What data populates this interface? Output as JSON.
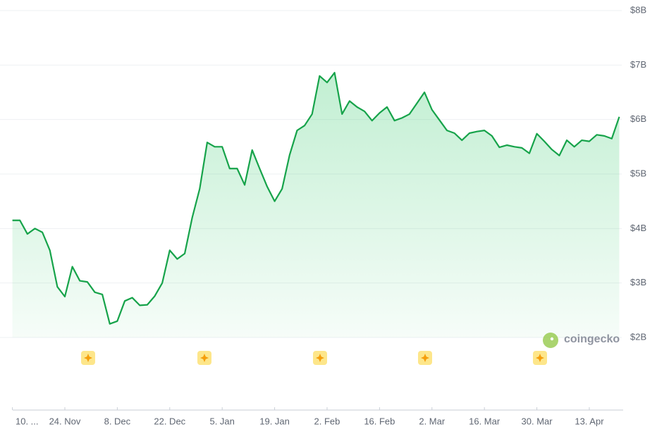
{
  "chart_data": {
    "type": "area",
    "color": "#16a34a",
    "grid": true,
    "watermark": "coingecko",
    "ylim": [
      2,
      8
    ],
    "yticks": [
      {
        "value": 2,
        "label": "$2B"
      },
      {
        "value": 3,
        "label": "$3B"
      },
      {
        "value": 4,
        "label": "$4B"
      },
      {
        "value": 5,
        "label": "$5B"
      },
      {
        "value": 6,
        "label": "$6B"
      },
      {
        "value": 7,
        "label": "$7B"
      },
      {
        "value": 8,
        "label": "$8B"
      }
    ],
    "categories": [
      "10. ...",
      null,
      null,
      null,
      null,
      null,
      null,
      "24. Nov",
      null,
      null,
      null,
      null,
      null,
      null,
      "8. Dec",
      null,
      null,
      null,
      null,
      null,
      null,
      "22. Dec",
      null,
      null,
      null,
      null,
      null,
      null,
      "5. Jan",
      null,
      null,
      null,
      null,
      null,
      null,
      "19. Jan",
      null,
      null,
      null,
      null,
      null,
      null,
      "2. Feb",
      null,
      null,
      null,
      null,
      null,
      null,
      "16. Feb",
      null,
      null,
      null,
      null,
      null,
      null,
      "2. Mar",
      null,
      null,
      null,
      null,
      null,
      null,
      "16. Mar",
      null,
      null,
      null,
      null,
      null,
      null,
      "30. Mar",
      null,
      null,
      null,
      null,
      null,
      null,
      "13. Apr",
      null,
      null,
      null,
      null
    ],
    "values": [
      4.15,
      4.15,
      3.9,
      4.0,
      3.93,
      3.6,
      2.93,
      2.75,
      3.3,
      3.04,
      3.02,
      2.83,
      2.79,
      2.25,
      2.3,
      2.67,
      2.73,
      2.59,
      2.6,
      2.76,
      3.0,
      3.6,
      3.44,
      3.54,
      4.2,
      4.73,
      5.58,
      5.5,
      5.5,
      5.1,
      5.1,
      4.8,
      5.44,
      5.1,
      4.77,
      4.5,
      4.73,
      5.35,
      5.8,
      5.89,
      6.1,
      6.8,
      6.68,
      6.86,
      6.1,
      6.34,
      6.23,
      6.15,
      5.98,
      6.12,
      6.23,
      5.98,
      6.03,
      6.1,
      6.3,
      6.5,
      6.18,
      5.99,
      5.8,
      5.75,
      5.62,
      5.75,
      5.78,
      5.8,
      5.7,
      5.49,
      5.53,
      5.5,
      5.48,
      5.38,
      5.74,
      5.6,
      5.45,
      5.34,
      5.62,
      5.5,
      5.62,
      5.6,
      5.72,
      5.7,
      5.65,
      6.05
    ]
  }
}
